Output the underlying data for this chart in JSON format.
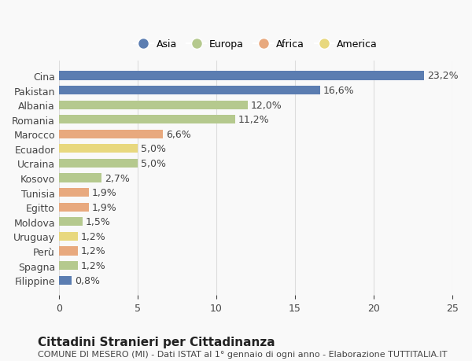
{
  "categories": [
    "Filippine",
    "Spagna",
    "Perù",
    "Uruguay",
    "Moldova",
    "Egitto",
    "Tunisia",
    "Kosovo",
    "Ucraina",
    "Ecuador",
    "Marocco",
    "Romania",
    "Albania",
    "Pakistan",
    "Cina"
  ],
  "values": [
    0.8,
    1.2,
    1.2,
    1.2,
    1.5,
    1.9,
    1.9,
    2.7,
    5.0,
    5.0,
    6.6,
    11.2,
    12.0,
    16.6,
    23.2
  ],
  "labels": [
    "0,8%",
    "1,2%",
    "1,2%",
    "1,2%",
    "1,5%",
    "1,9%",
    "1,9%",
    "2,7%",
    "5,0%",
    "5,0%",
    "6,6%",
    "11,2%",
    "12,0%",
    "16,6%",
    "23,2%"
  ],
  "colors": [
    "#5b7db1",
    "#b5c98e",
    "#e8a97e",
    "#e8d87e",
    "#b5c98e",
    "#e8a97e",
    "#e8a97e",
    "#b5c98e",
    "#b5c98e",
    "#e8d87e",
    "#e8a97e",
    "#b5c98e",
    "#b5c98e",
    "#5b7db1",
    "#5b7db1"
  ],
  "legend_labels": [
    "Asia",
    "Europa",
    "Africa",
    "America"
  ],
  "legend_colors": [
    "#5b7db1",
    "#b5c98e",
    "#e8a97e",
    "#e8d87e"
  ],
  "title": "Cittadini Stranieri per Cittadinanza",
  "subtitle": "COMUNE DI MESERO (MI) - Dati ISTAT al 1° gennaio di ogni anno - Elaborazione TUTTITALIA.IT",
  "xlim": [
    0,
    25
  ],
  "xticks": [
    0,
    5,
    10,
    15,
    20,
    25
  ],
  "background_color": "#f9f9f9",
  "grid_color": "#dddddd",
  "bar_height": 0.6,
  "label_fontsize": 9,
  "tick_fontsize": 9,
  "title_fontsize": 11,
  "subtitle_fontsize": 8
}
